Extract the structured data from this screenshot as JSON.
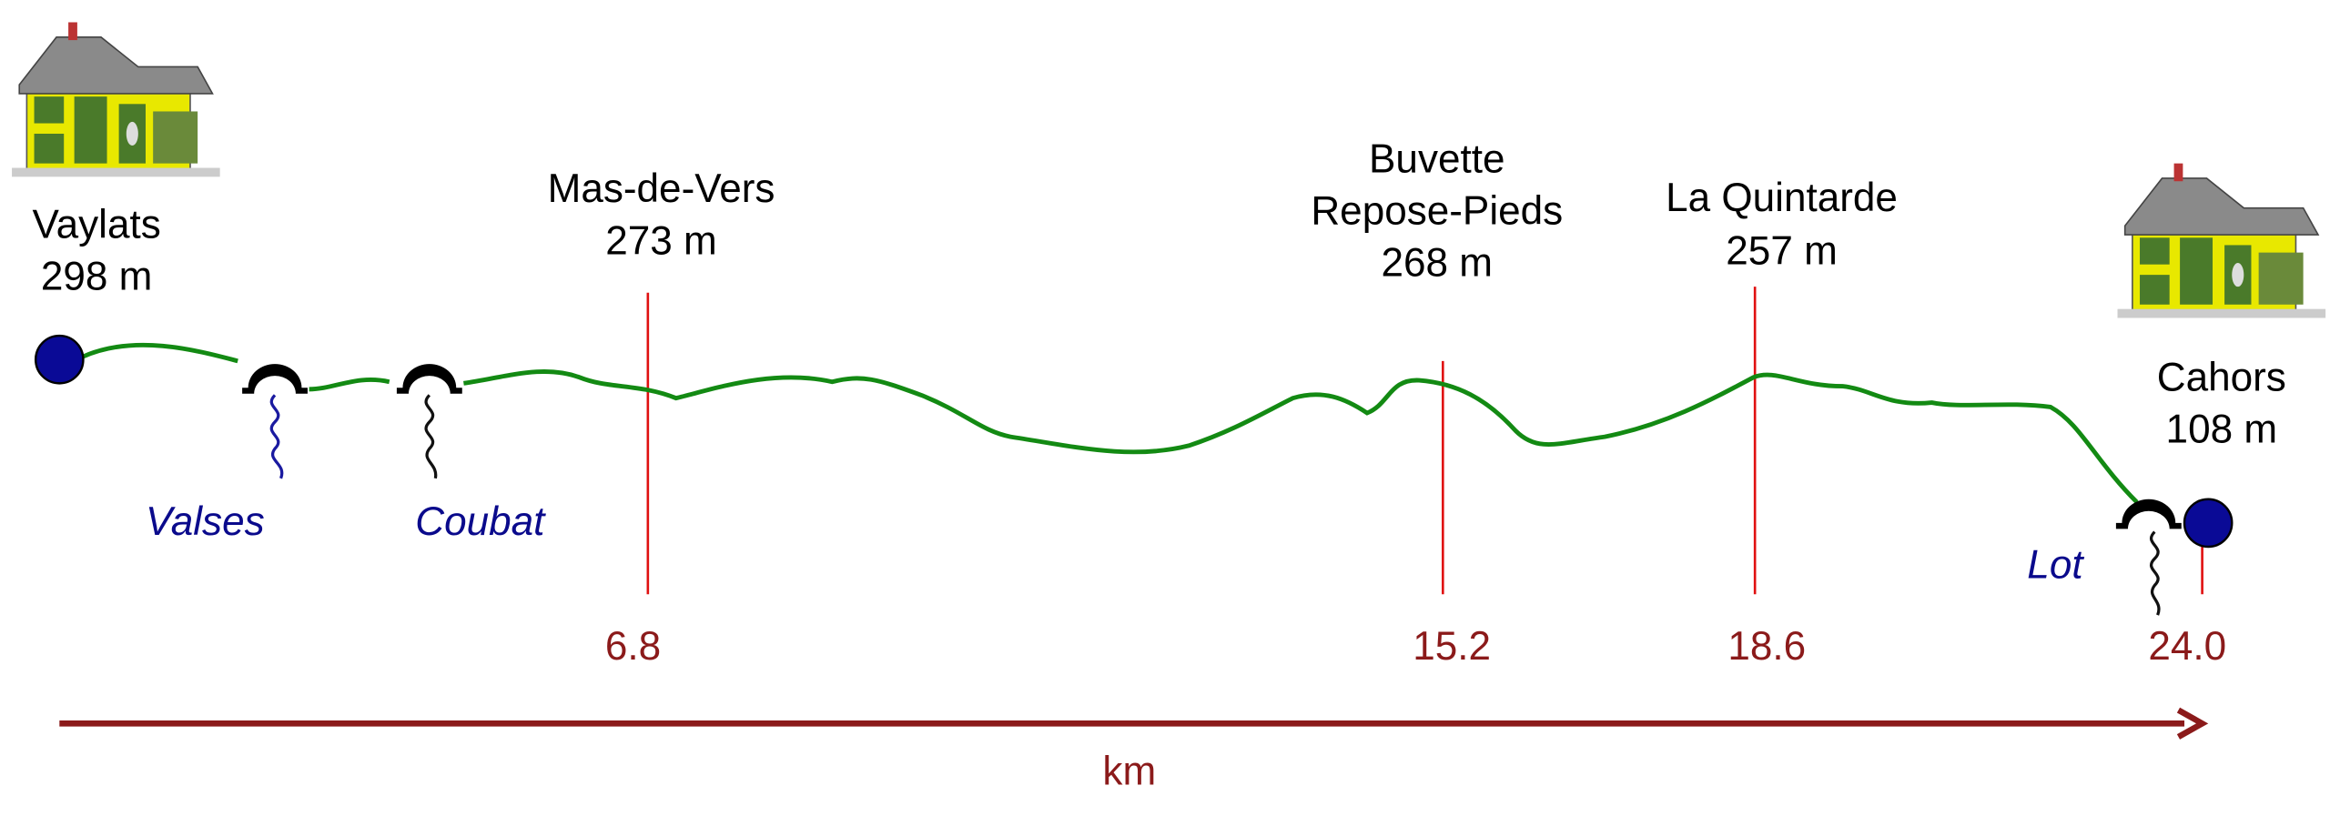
{
  "start": {
    "name": "Vaylats",
    "elevation": "298 m"
  },
  "end": {
    "name": "Cahors",
    "elevation": "108 m",
    "km": "24.0"
  },
  "waypoints": [
    {
      "name": [
        "Mas-de-Vers"
      ],
      "elevation": "273 m",
      "km": "6.8"
    },
    {
      "name": [
        "Buvette",
        "Repose-Pieds"
      ],
      "elevation": "268 m",
      "km": "15.2"
    },
    {
      "name": [
        "La Quintarde"
      ],
      "elevation": "257 m",
      "km": "18.6"
    }
  ],
  "streams": [
    "Valses",
    "Coubat",
    "Lot"
  ],
  "axis_label": "km"
}
